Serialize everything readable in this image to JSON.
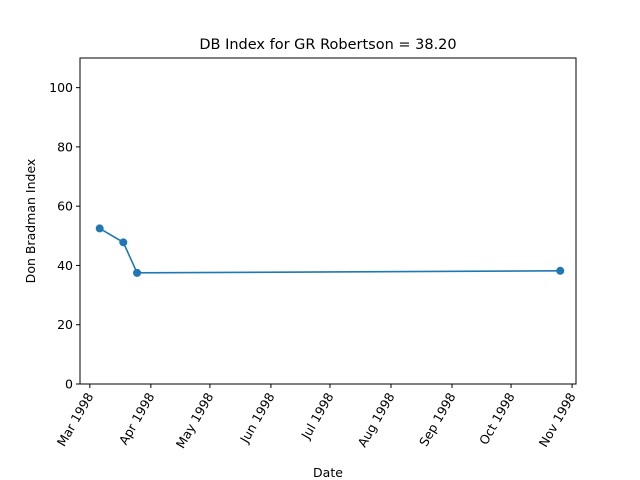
{
  "chart_data": {
    "type": "line",
    "title": "DB Index for GR Robertson = 38.20",
    "xlabel": "Date",
    "ylabel": "Don Bradman Index",
    "x_ticks": [
      {
        "date": "1998-03-01",
        "label": "Mar 1998"
      },
      {
        "date": "1998-04-01",
        "label": "Apr 1998"
      },
      {
        "date": "1998-05-01",
        "label": "May 1998"
      },
      {
        "date": "1998-06-01",
        "label": "Jun 1998"
      },
      {
        "date": "1998-07-01",
        "label": "Jul 1998"
      },
      {
        "date": "1998-08-01",
        "label": "Aug 1998"
      },
      {
        "date": "1998-09-01",
        "label": "Sep 1998"
      },
      {
        "date": "1998-10-01",
        "label": "Oct 1998"
      },
      {
        "date": "1998-11-01",
        "label": "Nov 1998"
      }
    ],
    "xlim": [
      "1998-02-24",
      "1998-11-03"
    ],
    "ylim": [
      0,
      110
    ],
    "y_ticks": [
      0,
      20,
      40,
      60,
      80,
      100
    ],
    "grid": false,
    "series": [
      {
        "color": "#1f77b4",
        "x": [
          "1998-03-06",
          "1998-03-18",
          "1998-03-25",
          "1998-10-26"
        ],
        "values": [
          52.5,
          47.8,
          37.5,
          38.2
        ]
      }
    ]
  }
}
